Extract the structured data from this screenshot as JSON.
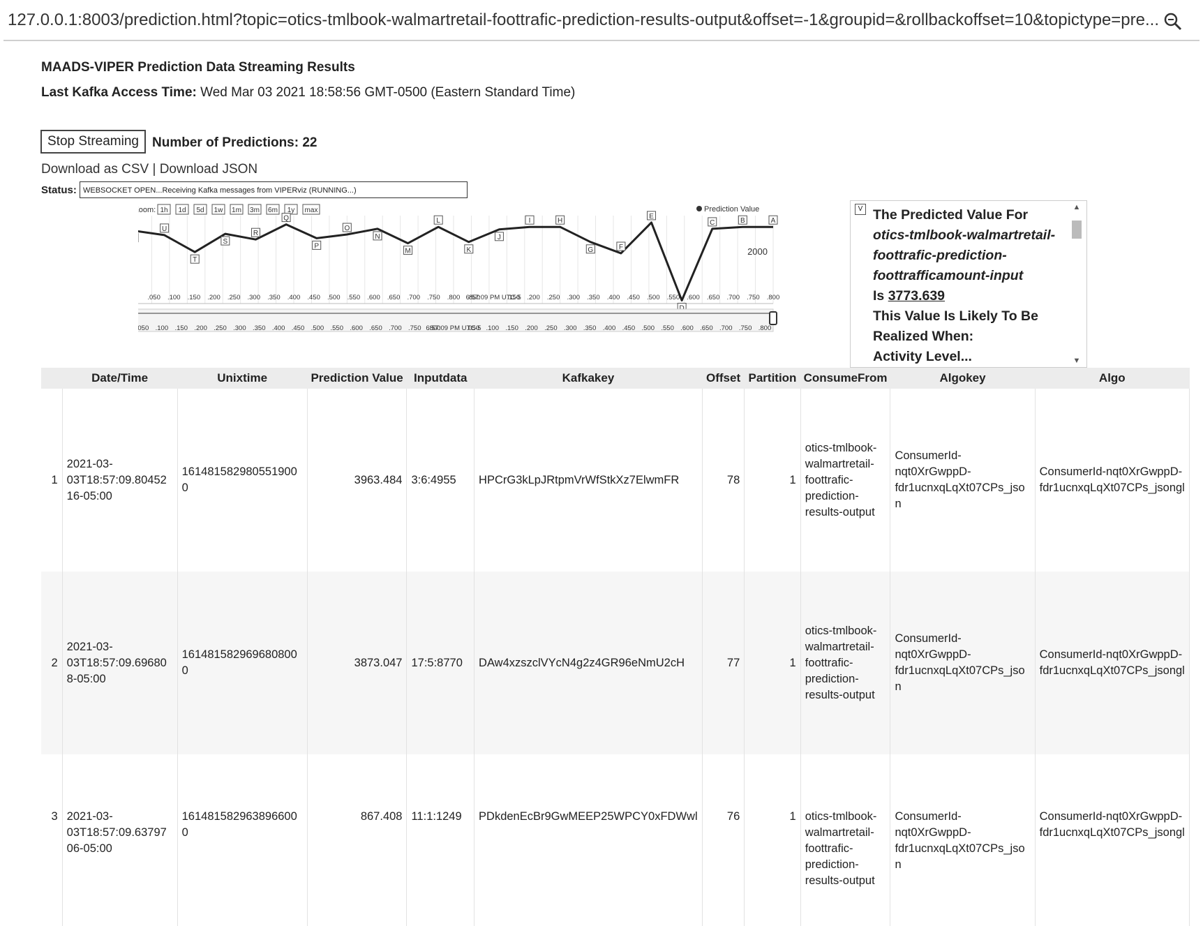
{
  "browser": {
    "url": "127.0.0.1:8003/prediction.html?topic=otics-tmlbook-walmartretail-foottrafic-prediction-results-output&offset=-1&groupid=&rollbackoffset=10&topictype=pre..."
  },
  "header": {
    "title": "MAADS-VIPER Prediction Data Streaming Results",
    "access_label": "Last Kafka Access Time:",
    "access_time": " Wed Mar 03 2021 18:58:56 GMT-0500 (Eastern Standard Time)"
  },
  "controls": {
    "stop_label": "Stop Streaming",
    "num_predictions": "Number of Predictions: 22",
    "download_csv": "Download as CSV",
    "sep": " | ",
    "download_json": "Download JSON",
    "status_label": "Status:",
    "status_value": "WEBSOCKET OPEN...Receiving Kafka messages from VIPERviz (RUNNING...)"
  },
  "chart_data": {
    "type": "line",
    "legend": "Prediction Value",
    "zoom_label": "Zoom:",
    "zoom_buttons": [
      "1h",
      "1d",
      "5d",
      "1w",
      "1m",
      "3m",
      "6m",
      "1y",
      "max"
    ],
    "ylim": [
      -1600,
      5400
    ],
    "ytick": "2000",
    "x": [
      0,
      1,
      2,
      3,
      4,
      5,
      6,
      7,
      8,
      9,
      10,
      11,
      12,
      13,
      14,
      15,
      16,
      17,
      18,
      19,
      20,
      21
    ],
    "values": [
      4200,
      3850,
      2500,
      3950,
      3500,
      4700,
      3600,
      3900,
      4350,
      3200,
      4500,
      3300,
      4300,
      4500,
      4500,
      3300,
      2400,
      4850,
      -1350,
      4350,
      4500,
      4500
    ],
    "flags": [
      "V",
      "U",
      "T",
      "S",
      "R",
      "Q",
      "P",
      "O",
      "N",
      "M",
      "L",
      "K",
      "J",
      "I",
      "H",
      "G",
      "F",
      "E",
      "D",
      "C",
      "B",
      "A"
    ],
    "xticks_main": [
      "6...",
      ".050",
      ".100",
      ".150",
      ".200",
      ".250",
      ".300",
      ".350",
      ".400",
      ".450",
      ".500",
      ".550",
      ".600",
      ".650",
      ".700",
      ".750",
      ".800",
      ".850",
      "6:57:09 PM UTC-5",
      ".150",
      ".200",
      ".250",
      ".300",
      ".350",
      ".400",
      ".450",
      ".500",
      ".550",
      ".600",
      ".650",
      ".700",
      ".750",
      ".800"
    ],
    "xticks_nav": [
      ".050",
      ".100",
      ".150",
      ".200",
      ".250",
      ".300",
      ".350",
      ".400",
      ".450",
      ".500",
      ".550",
      ".600",
      ".650",
      ".700",
      ".750",
      ".800",
      "6:57:09 PM UTC-5",
      ".050",
      ".100",
      ".150",
      ".200",
      ".250",
      ".300",
      ".350",
      ".400",
      ".450",
      ".500",
      ".550",
      ".600",
      ".650",
      ".700",
      ".750",
      ".800"
    ]
  },
  "prediction_panel": {
    "vbox": "V",
    "line1": "The Predicted Value For",
    "topic": "otics-tmlbook-walmartretail-foottrafic-prediction-foottrafficamount-input",
    "is_label": "Is ",
    "value": "3773.639",
    "line2": "This Value Is Likely To Be Realized When:",
    "line3": "Activity Level..."
  },
  "table": {
    "headers": [
      "",
      "Date/Time",
      "Unixtime",
      "Prediction Value",
      "Inputdata",
      "Kafkakey",
      "Offset",
      "Partition",
      "ConsumeFrom",
      "Algokey",
      "Algo"
    ],
    "rows": [
      [
        "1",
        "2021-03-03T18:57:09.8045216-05:00",
        "1614815829805519000",
        "3963.484",
        "3:6:4955",
        "HPCrG3kLpJRtpmVrWfStkXz7ElwmFR",
        "78",
        "1",
        "otics-tmlbook-walmartretail-foottrafic-prediction-results-output",
        "ConsumerId-nqt0XrGwppD-fdr1ucnxqLqXt07CPs_json",
        "ConsumerId-nqt0XrGwppD-fdr1ucnxqLqXt07CPs_jsongl"
      ],
      [
        "2",
        "2021-03-03T18:57:09.696808-05:00",
        "1614815829696808000",
        "3873.047",
        "17:5:8770",
        "DAw4xzszclVYcN4g2z4GR96eNmU2cH",
        "77",
        "1",
        "otics-tmlbook-walmartretail-foottrafic-prediction-results-output",
        "ConsumerId-nqt0XrGwppD-fdr1ucnxqLqXt07CPs_json",
        "ConsumerId-nqt0XrGwppD-fdr1ucnxqLqXt07CPs_jsongl"
      ],
      [
        "3",
        "2021-03-03T18:57:09.6379706-05:00",
        "1614815829638966000",
        "867.408",
        "11:1:1249",
        "PDkdenEcBr9GwMEEP25WPCY0xFDWwl",
        "76",
        "1",
        "otics-tmlbook-walmartretail-foottrafic-prediction-results-output",
        "ConsumerId-nqt0XrGwppD-fdr1ucnxqLqXt07CPs_json",
        "ConsumerId-nqt0XrGwppD-fdr1ucnxqLqXt07CPs_jsongl"
      ]
    ]
  }
}
